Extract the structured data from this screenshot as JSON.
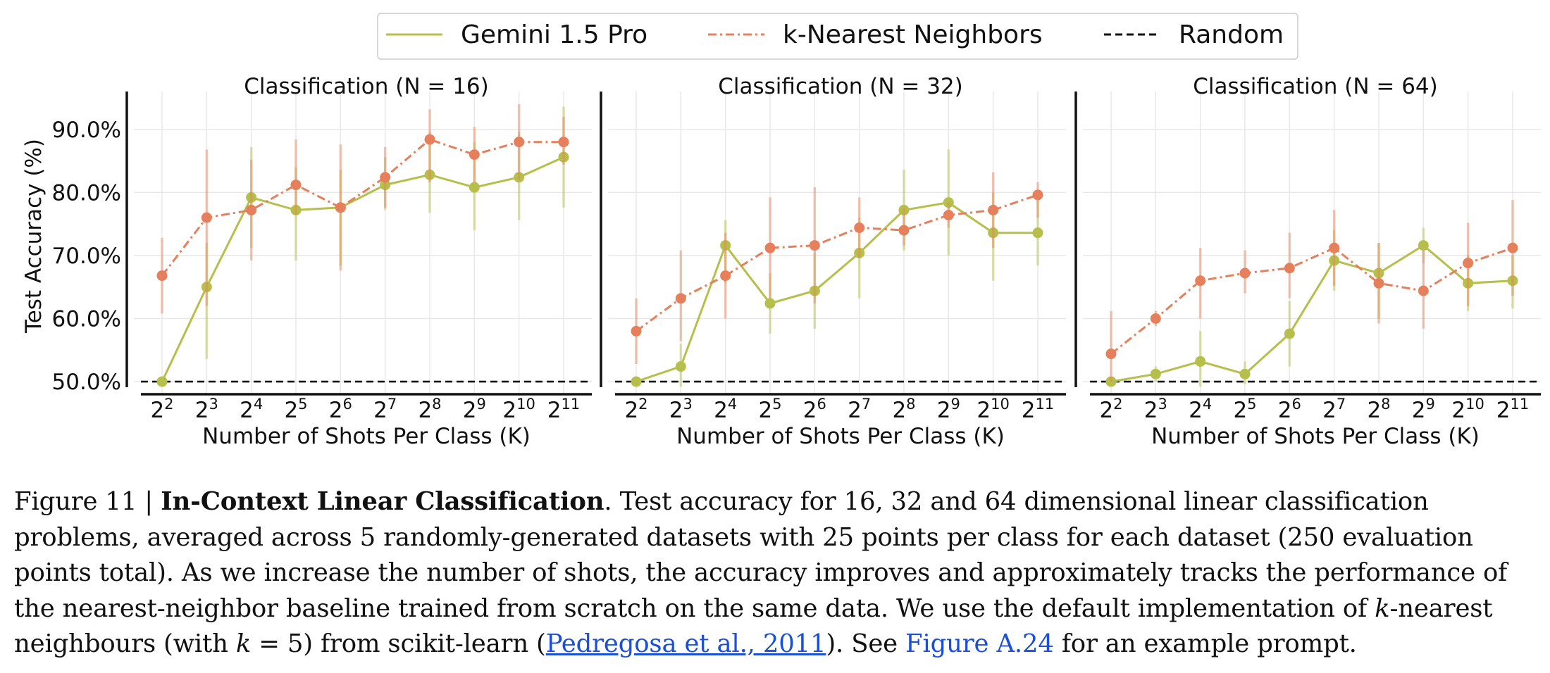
{
  "legend": {
    "items": [
      {
        "label": "Gemini 1.5 Pro",
        "color": "#b5bf4a",
        "style": "solid"
      },
      {
        "label": "k-Nearest Neighbors",
        "color": "#e6805c",
        "style": "dashdot"
      },
      {
        "label": "Random",
        "color": "#111111",
        "style": "dashed"
      }
    ]
  },
  "chart_data": [
    {
      "type": "line",
      "title": "Classification (N = 16)",
      "xlabel": "Number of Shots Per Class (K)",
      "ylabel": "Test Accuracy (%)",
      "x": [
        "2^2",
        "2^3",
        "2^4",
        "2^5",
        "2^6",
        "2^7",
        "2^8",
        "2^9",
        "2^10",
        "2^11"
      ],
      "ylim": [
        48,
        96
      ],
      "yticks": [
        "50.0%",
        "60.0%",
        "70.0%",
        "80.0%",
        "90.0%"
      ],
      "grid": true,
      "baseline": 50,
      "series": [
        {
          "name": "Gemini 1.5 Pro",
          "values": [
            50.0,
            65.0,
            79.2,
            77.2,
            77.6,
            81.2,
            82.8,
            80.8,
            82.4,
            85.6
          ],
          "err_low": [
            50.0,
            53.6,
            71.2,
            69.2,
            68.4,
            77.2,
            76.8,
            74.0,
            75.6,
            77.6
          ],
          "err_high": [
            50.0,
            72.0,
            87.2,
            84.0,
            83.6,
            85.6,
            89.6,
            88.0,
            89.6,
            93.6
          ]
        },
        {
          "name": "k-Nearest Neighbors",
          "values": [
            66.8,
            76.0,
            77.2,
            81.2,
            77.6,
            82.4,
            88.4,
            86.0,
            88.0,
            88.0
          ],
          "err_low": [
            60.8,
            62.0,
            69.2,
            76.4,
            67.6,
            77.6,
            81.6,
            81.6,
            82.0,
            84.4
          ],
          "err_high": [
            72.8,
            86.8,
            85.2,
            88.4,
            87.6,
            87.2,
            93.2,
            90.4,
            94.0,
            92.0
          ]
        }
      ]
    },
    {
      "type": "line",
      "title": "Classification (N = 32)",
      "xlabel": "Number of Shots Per Class (K)",
      "ylabel": "",
      "x": [
        "2^2",
        "2^3",
        "2^4",
        "2^5",
        "2^6",
        "2^7",
        "2^8",
        "2^9",
        "2^10",
        "2^11"
      ],
      "ylim": [
        48,
        96
      ],
      "yticks": [],
      "grid": true,
      "baseline": 50,
      "series": [
        {
          "name": "Gemini 1.5 Pro",
          "values": [
            50.0,
            52.4,
            71.6,
            62.4,
            64.4,
            70.4,
            77.2,
            78.4,
            73.6,
            73.6
          ],
          "err_low": [
            50.0,
            49.2,
            65.6,
            57.6,
            58.4,
            63.2,
            70.8,
            70.0,
            66.0,
            68.4
          ],
          "err_high": [
            50.0,
            56.0,
            75.6,
            67.2,
            70.4,
            76.0,
            83.6,
            86.8,
            80.0,
            78.8
          ]
        },
        {
          "name": "k-Nearest Neighbors",
          "values": [
            58.0,
            63.2,
            66.8,
            71.2,
            71.6,
            74.4,
            74.0,
            76.4,
            77.2,
            79.6
          ],
          "err_low": [
            52.8,
            56.4,
            60.0,
            63.2,
            62.4,
            69.6,
            71.6,
            74.4,
            71.2,
            76.0
          ],
          "err_high": [
            63.2,
            70.8,
            73.6,
            79.2,
            80.8,
            79.2,
            77.6,
            78.4,
            83.2,
            81.6
          ]
        }
      ]
    },
    {
      "type": "line",
      "title": "Classification (N = 64)",
      "xlabel": "Number of Shots Per Class (K)",
      "ylabel": "",
      "x": [
        "2^2",
        "2^3",
        "2^4",
        "2^5",
        "2^6",
        "2^7",
        "2^8",
        "2^9",
        "2^10",
        "2^11"
      ],
      "ylim": [
        48,
        96
      ],
      "yticks": [],
      "grid": true,
      "baseline": 50,
      "series": [
        {
          "name": "Gemini 1.5 Pro",
          "values": [
            50.0,
            51.2,
            53.2,
            51.2,
            57.6,
            69.2,
            67.2,
            71.6,
            65.6,
            66.0
          ],
          "err_low": [
            50.0,
            50.0,
            49.2,
            49.6,
            52.4,
            64.4,
            60.0,
            68.8,
            61.2,
            61.6
          ],
          "err_high": [
            50.0,
            52.4,
            58.0,
            53.2,
            62.8,
            74.0,
            72.0,
            74.4,
            70.0,
            70.0
          ]
        },
        {
          "name": "k-Nearest Neighbors",
          "values": [
            54.4,
            60.0,
            66.0,
            67.2,
            68.0,
            71.2,
            65.6,
            64.4,
            68.8,
            71.2
          ],
          "err_low": [
            50.0,
            58.8,
            60.0,
            64.0,
            63.2,
            65.2,
            59.2,
            58.4,
            62.0,
            63.6
          ],
          "err_high": [
            61.2,
            61.2,
            71.2,
            70.8,
            73.6,
            77.2,
            72.0,
            70.8,
            75.2,
            78.8
          ]
        }
      ]
    }
  ],
  "caption": {
    "figure_label": "Figure 11 | ",
    "bold_title": "In-Context Linear Classification",
    "text_1": ". Test accuracy for 16, 32 and 64 dimensional linear classification problems, averaged across 5 randomly-generated datasets with 25 points per class for each dataset (250 evaluation points total). As we increase the number of shots, the accuracy improves and approximately tracks the performance of the nearest-neighbor baseline trained from scratch on the same data. We use the default implementation of ",
    "italic_k": "k",
    "text_2": "-nearest neighbours (with ",
    "italic_k2": "k",
    "text_3": " = 5) from scikit-learn (",
    "citation": "Pedregosa et al., 2011",
    "text_4": "). See ",
    "figure_ref": "Figure A.24",
    "text_5": " for an example prompt."
  }
}
